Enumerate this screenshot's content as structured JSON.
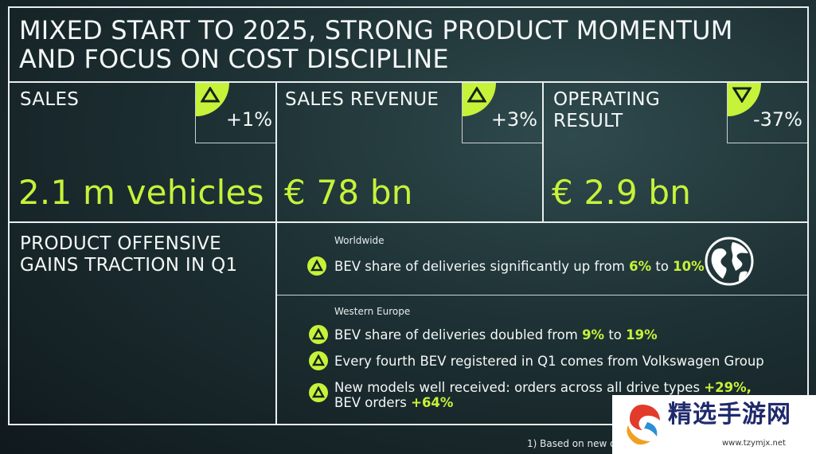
{
  "title_line1": "MIXED START TO 2025, STRONG PRODUCT MOMENTUM",
  "title_line2": "AND FOCUS ON COST DISCIPLINE",
  "kpis": [
    {
      "label_line1": "SALES",
      "label_line2": "",
      "change": "+1%",
      "direction": "up",
      "value": "2.1 m vehicles"
    },
    {
      "label_line1": "SALES REVENUE",
      "label_line2": "",
      "change": "+3%",
      "direction": "up",
      "value": "€ 78 bn"
    },
    {
      "label_line1": "OPERATING",
      "label_line2": "RESULT",
      "change": "-37%",
      "direction": "down",
      "value": "€ 2.9 bn"
    }
  ],
  "product": {
    "heading_line1": "PRODUCT OFFENSIVE",
    "heading_line2": "GAINS TRACTION IN Q1"
  },
  "worldwide": {
    "region": "Worldwide",
    "bullets": [
      {
        "t1": "BEV share of deliveries significantly up from ",
        "h1": "6%",
        "t2": " to ",
        "h2": "10%"
      }
    ],
    "icon": "globe-icon"
  },
  "western_europe": {
    "region": "Western Europe",
    "bullet1": {
      "t1": "BEV share of deliveries doubled from ",
      "h1": "9%",
      "t2": " to ",
      "h2": "19%"
    },
    "bullet2": {
      "t1": "Every fourth BEV registered in Q1 comes from Volkswagen Group"
    },
    "bullet3": {
      "line1": "New models well received: orders across all drive types ",
      "h1": "+29%,",
      "line2": "BEV orders ",
      "h2": "+64%"
    }
  },
  "footnote": "1)  Based on new d",
  "watermark": {
    "name": "精选手游网",
    "url": "www.tzymjx.net"
  },
  "colors": {
    "accent": "#c6f23a",
    "background": "#1d3033",
    "line": "#e8eeee"
  }
}
